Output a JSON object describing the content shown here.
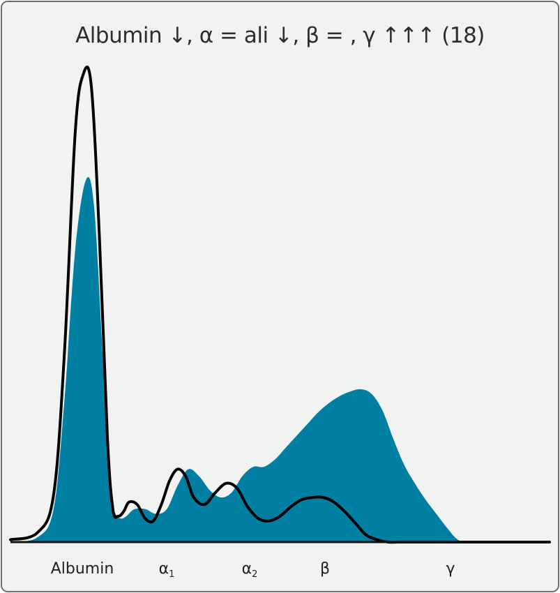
{
  "chart_data": {
    "type": "area",
    "title": "Albumin ↓, α = ali ↓, β = , γ ↑↑↑ (18)",
    "xlabel": "",
    "ylabel": "",
    "grid": false,
    "legend": "none",
    "x_ticks": [
      {
        "label": "Albumin",
        "sub": ""
      },
      {
        "label": "α",
        "sub": "1"
      },
      {
        "label": "α",
        "sub": "2"
      },
      {
        "label": "β",
        "sub": ""
      },
      {
        "label": "γ",
        "sub": ""
      }
    ],
    "xlim": [
      0,
      100
    ],
    "ylim": [
      0,
      100
    ],
    "series": [
      {
        "role": "patient",
        "style": "filled",
        "color": "#007fa3",
        "x": [
          0,
          5,
          8,
          10,
          12,
          14,
          15.5,
          17,
          18.5,
          19.5,
          20.5,
          21.5,
          23,
          25,
          27,
          29,
          31,
          33,
          35,
          37,
          39,
          41,
          43,
          45,
          47,
          49,
          51,
          53,
          55,
          57,
          59,
          61,
          63,
          65,
          67,
          69,
          71,
          73,
          75,
          77,
          79,
          81,
          83,
          85,
          87,
          89,
          91,
          93,
          95,
          97,
          99
        ],
        "y": [
          0,
          1,
          7,
          30,
          62,
          77,
          71.5,
          42,
          10,
          6,
          5,
          5.5,
          7,
          7,
          6,
          7,
          12,
          15.5,
          14,
          11,
          9.5,
          10.5,
          14,
          16,
          16,
          17.5,
          20,
          22.5,
          25,
          27.5,
          29.5,
          31,
          32,
          32.5,
          31.5,
          28,
          22,
          16.5,
          12.5,
          9,
          6,
          3,
          0.5,
          0,
          0,
          0,
          0,
          0,
          0,
          0,
          0
        ]
      },
      {
        "role": "normal reference",
        "style": "outline",
        "color": "#000000",
        "x": [
          0,
          5,
          8,
          10,
          12,
          13.5,
          15,
          16.5,
          18,
          19,
          20,
          21,
          22,
          23.5,
          25,
          26.5,
          28,
          29.5,
          31,
          32.5,
          34,
          36,
          38,
          40,
          42,
          44,
          46,
          48,
          50,
          52,
          54,
          56,
          58,
          60,
          62,
          64,
          66,
          68,
          70,
          72,
          74,
          76,
          78,
          80,
          82,
          84,
          86,
          88,
          90,
          92,
          94,
          96,
          98,
          100
        ],
        "y": [
          0.5,
          2,
          10,
          40,
          87,
          99.5,
          97,
          65,
          22,
          7,
          5.5,
          6.5,
          8.5,
          8,
          5,
          4.5,
          8,
          13,
          15.5,
          14,
          9.5,
          8,
          10.5,
          12.5,
          11.5,
          7.5,
          5,
          4.5,
          5.5,
          7.5,
          9,
          9.5,
          9.5,
          8.5,
          6.5,
          4,
          1.5,
          0.5,
          0,
          0,
          0,
          0,
          0,
          0,
          0,
          0,
          0,
          0,
          0,
          0,
          0,
          0,
          0,
          0
        ]
      }
    ]
  }
}
